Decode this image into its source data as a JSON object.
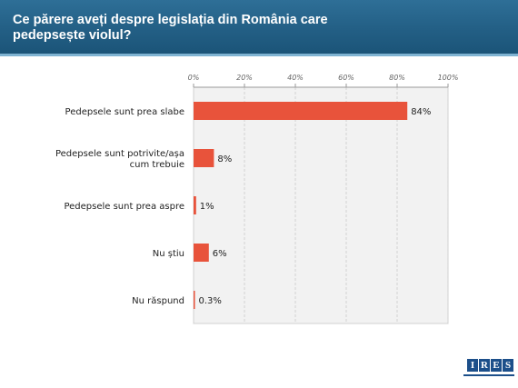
{
  "header": {
    "title": "Ce părere aveți despre legislația din România care pedepsește violul?"
  },
  "logo": {
    "letters": [
      "I",
      "R",
      "E",
      "S"
    ]
  },
  "chart_data": {
    "type": "bar",
    "orientation": "horizontal",
    "title": "Ce părere aveți despre legislația din România care pedepsește violul?",
    "categories": [
      "Pedepsele sunt prea slabe",
      "Pedepsele sunt potrivite/așa cum trebuie",
      "Pedepsele sunt prea aspre",
      "Nu știu",
      "Nu răspund"
    ],
    "category_lines": [
      [
        "Pedepsele sunt prea slabe"
      ],
      [
        "Pedepsele sunt potrivite/așa",
        "cum trebuie"
      ],
      [
        "Pedepsele sunt prea aspre"
      ],
      [
        "Nu știu"
      ],
      [
        "Nu răspund"
      ]
    ],
    "values": [
      84,
      8,
      1,
      6,
      0.3
    ],
    "value_labels": [
      "84%",
      "8%",
      "1%",
      "6%",
      "0.3%"
    ],
    "xlim": [
      0,
      100
    ],
    "xticks": [
      0,
      20,
      40,
      60,
      80,
      100
    ],
    "xtick_labels": [
      "0%",
      "20%",
      "40%",
      "60%",
      "80%",
      "100%"
    ],
    "axis_position": "top",
    "grid": true,
    "bar_color": "#e8533b",
    "plot_background": "#f2f2f2"
  }
}
